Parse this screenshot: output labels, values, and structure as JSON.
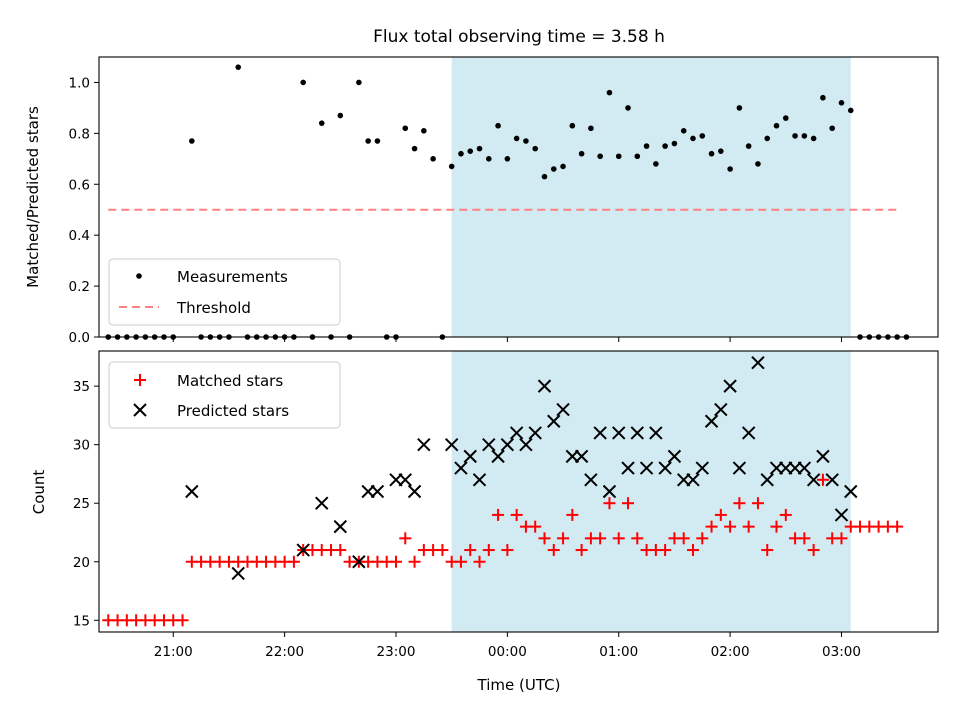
{
  "chart_data": [
    {
      "type": "scatter",
      "title": "Flux total observing time = 3.58 h",
      "xlabel": "",
      "ylabel": "Matched/Predicted stars",
      "xlim": [
        "20:20",
        "03:52"
      ],
      "ylim": [
        0,
        1.1
      ],
      "yticks": [
        "0.0",
        "0.2",
        "0.4",
        "0.6",
        "0.8",
        "1.0"
      ],
      "grid": false,
      "legend": "lower-left",
      "shaded_region": {
        "from": "23:30",
        "to": "03:05",
        "color": "#add8e6"
      },
      "threshold": {
        "name": "Threshold",
        "value": 0.5,
        "from": "20:25",
        "to": "03:30",
        "color": "#ff8080"
      },
      "series": [
        {
          "name": "Measurements",
          "color": "#000000",
          "marker": "dot",
          "points": [
            [
              "20:25",
              0
            ],
            [
              "20:30",
              0
            ],
            [
              "20:35",
              0
            ],
            [
              "20:40",
              0
            ],
            [
              "20:45",
              0
            ],
            [
              "20:50",
              0
            ],
            [
              "20:55",
              0
            ],
            [
              "21:00",
              0
            ],
            [
              "21:10",
              0.77
            ],
            [
              "21:15",
              0
            ],
            [
              "21:20",
              0
            ],
            [
              "21:25",
              0
            ],
            [
              "21:30",
              0
            ],
            [
              "21:35",
              1.06
            ],
            [
              "21:40",
              0
            ],
            [
              "21:45",
              0
            ],
            [
              "21:50",
              0
            ],
            [
              "21:55",
              0
            ],
            [
              "22:00",
              0
            ],
            [
              "22:05",
              0
            ],
            [
              "22:10",
              1.0
            ],
            [
              "22:15",
              0
            ],
            [
              "22:20",
              0.84
            ],
            [
              "22:25",
              0
            ],
            [
              "22:30",
              0.87
            ],
            [
              "22:35",
              0
            ],
            [
              "22:40",
              1.0
            ],
            [
              "22:45",
              0.77
            ],
            [
              "22:50",
              0.77
            ],
            [
              "22:55",
              0
            ],
            [
              "23:00",
              0
            ],
            [
              "23:05",
              0.82
            ],
            [
              "23:10",
              0.74
            ],
            [
              "23:15",
              0.81
            ],
            [
              "23:20",
              0.7
            ],
            [
              "23:25",
              0
            ],
            [
              "23:30",
              0.67
            ],
            [
              "23:35",
              0.72
            ],
            [
              "23:40",
              0.73
            ],
            [
              "23:45",
              0.74
            ],
            [
              "23:50",
              0.7
            ],
            [
              "23:55",
              0.83
            ],
            [
              "00:00",
              0.7
            ],
            [
              "00:05",
              0.78
            ],
            [
              "00:10",
              0.77
            ],
            [
              "00:15",
              0.74
            ],
            [
              "00:20",
              0.63
            ],
            [
              "00:25",
              0.66
            ],
            [
              "00:30",
              0.67
            ],
            [
              "00:35",
              0.83
            ],
            [
              "00:40",
              0.72
            ],
            [
              "00:45",
              0.82
            ],
            [
              "00:50",
              0.71
            ],
            [
              "00:55",
              0.96
            ],
            [
              "01:00",
              0.71
            ],
            [
              "01:05",
              0.9
            ],
            [
              "01:10",
              0.71
            ],
            [
              "01:15",
              0.75
            ],
            [
              "01:20",
              0.68
            ],
            [
              "01:25",
              0.75
            ],
            [
              "01:30",
              0.76
            ],
            [
              "01:35",
              0.81
            ],
            [
              "01:40",
              0.78
            ],
            [
              "01:45",
              0.79
            ],
            [
              "01:50",
              0.72
            ],
            [
              "01:55",
              0.73
            ],
            [
              "02:00",
              0.66
            ],
            [
              "02:05",
              0.9
            ],
            [
              "02:10",
              0.75
            ],
            [
              "02:15",
              0.68
            ],
            [
              "02:20",
              0.78
            ],
            [
              "02:25",
              0.83
            ],
            [
              "02:30",
              0.86
            ],
            [
              "02:35",
              0.79
            ],
            [
              "02:40",
              0.79
            ],
            [
              "02:45",
              0.78
            ],
            [
              "02:50",
              0.94
            ],
            [
              "02:55",
              0.82
            ],
            [
              "03:00",
              0.92
            ],
            [
              "03:05",
              0.89
            ],
            [
              "03:10",
              0
            ],
            [
              "03:15",
              0
            ],
            [
              "03:20",
              0
            ],
            [
              "03:25",
              0
            ],
            [
              "03:30",
              0
            ],
            [
              "03:35",
              0
            ]
          ]
        }
      ]
    },
    {
      "type": "scatter",
      "title": "",
      "xlabel": "Time (UTC)",
      "ylabel": "Count",
      "xlim": [
        "20:20",
        "03:52"
      ],
      "ylim": [
        14,
        38
      ],
      "xticks": [
        "21:00",
        "22:00",
        "23:00",
        "00:00",
        "01:00",
        "02:00",
        "03:00"
      ],
      "yticks": [
        "15",
        "20",
        "25",
        "30",
        "35"
      ],
      "grid": false,
      "legend": "top-left",
      "shaded_region": {
        "from": "23:30",
        "to": "03:05",
        "color": "#add8e6"
      },
      "series": [
        {
          "name": "Matched stars",
          "color": "#ff0000",
          "marker": "plus",
          "points": [
            [
              "20:25",
              15
            ],
            [
              "20:30",
              15
            ],
            [
              "20:35",
              15
            ],
            [
              "20:40",
              15
            ],
            [
              "20:45",
              15
            ],
            [
              "20:50",
              15
            ],
            [
              "20:55",
              15
            ],
            [
              "21:00",
              15
            ],
            [
              "21:05",
              15
            ],
            [
              "21:10",
              20
            ],
            [
              "21:15",
              20
            ],
            [
              "21:20",
              20
            ],
            [
              "21:25",
              20
            ],
            [
              "21:30",
              20
            ],
            [
              "21:35",
              20
            ],
            [
              "21:40",
              20
            ],
            [
              "21:45",
              20
            ],
            [
              "21:50",
              20
            ],
            [
              "21:55",
              20
            ],
            [
              "22:00",
              20
            ],
            [
              "22:05",
              20
            ],
            [
              "22:10",
              21
            ],
            [
              "22:15",
              21
            ],
            [
              "22:20",
              21
            ],
            [
              "22:25",
              21
            ],
            [
              "22:30",
              21
            ],
            [
              "22:35",
              20
            ],
            [
              "22:40",
              20
            ],
            [
              "22:45",
              20
            ],
            [
              "22:50",
              20
            ],
            [
              "22:55",
              20
            ],
            [
              "23:00",
              20
            ],
            [
              "23:05",
              22
            ],
            [
              "23:10",
              20
            ],
            [
              "23:15",
              21
            ],
            [
              "23:20",
              21
            ],
            [
              "23:25",
              21
            ],
            [
              "23:30",
              20
            ],
            [
              "23:35",
              20
            ],
            [
              "23:40",
              21
            ],
            [
              "23:45",
              20
            ],
            [
              "23:50",
              21
            ],
            [
              "23:55",
              24
            ],
            [
              "00:00",
              21
            ],
            [
              "00:05",
              24
            ],
            [
              "00:10",
              23
            ],
            [
              "00:15",
              23
            ],
            [
              "00:20",
              22
            ],
            [
              "00:25",
              21
            ],
            [
              "00:30",
              22
            ],
            [
              "00:35",
              24
            ],
            [
              "00:40",
              21
            ],
            [
              "00:45",
              22
            ],
            [
              "00:50",
              22
            ],
            [
              "00:55",
              25
            ],
            [
              "01:00",
              22
            ],
            [
              "01:05",
              25
            ],
            [
              "01:10",
              22
            ],
            [
              "01:15",
              21
            ],
            [
              "01:20",
              21
            ],
            [
              "01:25",
              21
            ],
            [
              "01:30",
              22
            ],
            [
              "01:35",
              22
            ],
            [
              "01:40",
              21
            ],
            [
              "01:45",
              22
            ],
            [
              "01:50",
              23
            ],
            [
              "01:55",
              24
            ],
            [
              "02:00",
              23
            ],
            [
              "02:05",
              25
            ],
            [
              "02:10",
              23
            ],
            [
              "02:15",
              25
            ],
            [
              "02:20",
              21
            ],
            [
              "02:25",
              23
            ],
            [
              "02:30",
              24
            ],
            [
              "02:35",
              22
            ],
            [
              "02:40",
              22
            ],
            [
              "02:45",
              21
            ],
            [
              "02:50",
              27
            ],
            [
              "02:55",
              22
            ],
            [
              "03:00",
              22
            ],
            [
              "03:05",
              23
            ],
            [
              "03:10",
              23
            ],
            [
              "03:15",
              23
            ],
            [
              "03:20",
              23
            ],
            [
              "03:25",
              23
            ],
            [
              "03:30",
              23
            ]
          ]
        },
        {
          "name": "Predicted stars",
          "color": "#000000",
          "marker": "x",
          "points": [
            [
              "21:10",
              26
            ],
            [
              "21:35",
              19
            ],
            [
              "22:10",
              21
            ],
            [
              "22:20",
              25
            ],
            [
              "22:30",
              23
            ],
            [
              "22:40",
              20
            ],
            [
              "22:45",
              26
            ],
            [
              "22:50",
              26
            ],
            [
              "23:00",
              27
            ],
            [
              "23:05",
              27
            ],
            [
              "23:10",
              26
            ],
            [
              "23:15",
              30
            ],
            [
              "23:30",
              30
            ],
            [
              "23:35",
              28
            ],
            [
              "23:40",
              29
            ],
            [
              "23:45",
              27
            ],
            [
              "23:50",
              30
            ],
            [
              "23:55",
              29
            ],
            [
              "00:00",
              30
            ],
            [
              "00:05",
              31
            ],
            [
              "00:10",
              30
            ],
            [
              "00:15",
              31
            ],
            [
              "00:20",
              35
            ],
            [
              "00:25",
              32
            ],
            [
              "00:30",
              33
            ],
            [
              "00:35",
              29
            ],
            [
              "00:40",
              29
            ],
            [
              "00:45",
              27
            ],
            [
              "00:50",
              31
            ],
            [
              "00:55",
              26
            ],
            [
              "01:00",
              31
            ],
            [
              "01:05",
              28
            ],
            [
              "01:10",
              31
            ],
            [
              "01:15",
              28
            ],
            [
              "01:20",
              31
            ],
            [
              "01:25",
              28
            ],
            [
              "01:30",
              29
            ],
            [
              "01:35",
              27
            ],
            [
              "01:40",
              27
            ],
            [
              "01:45",
              28
            ],
            [
              "01:50",
              32
            ],
            [
              "01:55",
              33
            ],
            [
              "02:00",
              35
            ],
            [
              "02:05",
              28
            ],
            [
              "02:10",
              31
            ],
            [
              "02:15",
              37
            ],
            [
              "02:20",
              27
            ],
            [
              "02:25",
              28
            ],
            [
              "02:30",
              28
            ],
            [
              "02:35",
              28
            ],
            [
              "02:40",
              28
            ],
            [
              "02:45",
              27
            ],
            [
              "02:50",
              29
            ],
            [
              "02:55",
              27
            ],
            [
              "03:00",
              24
            ],
            [
              "03:05",
              26
            ]
          ]
        }
      ]
    }
  ]
}
